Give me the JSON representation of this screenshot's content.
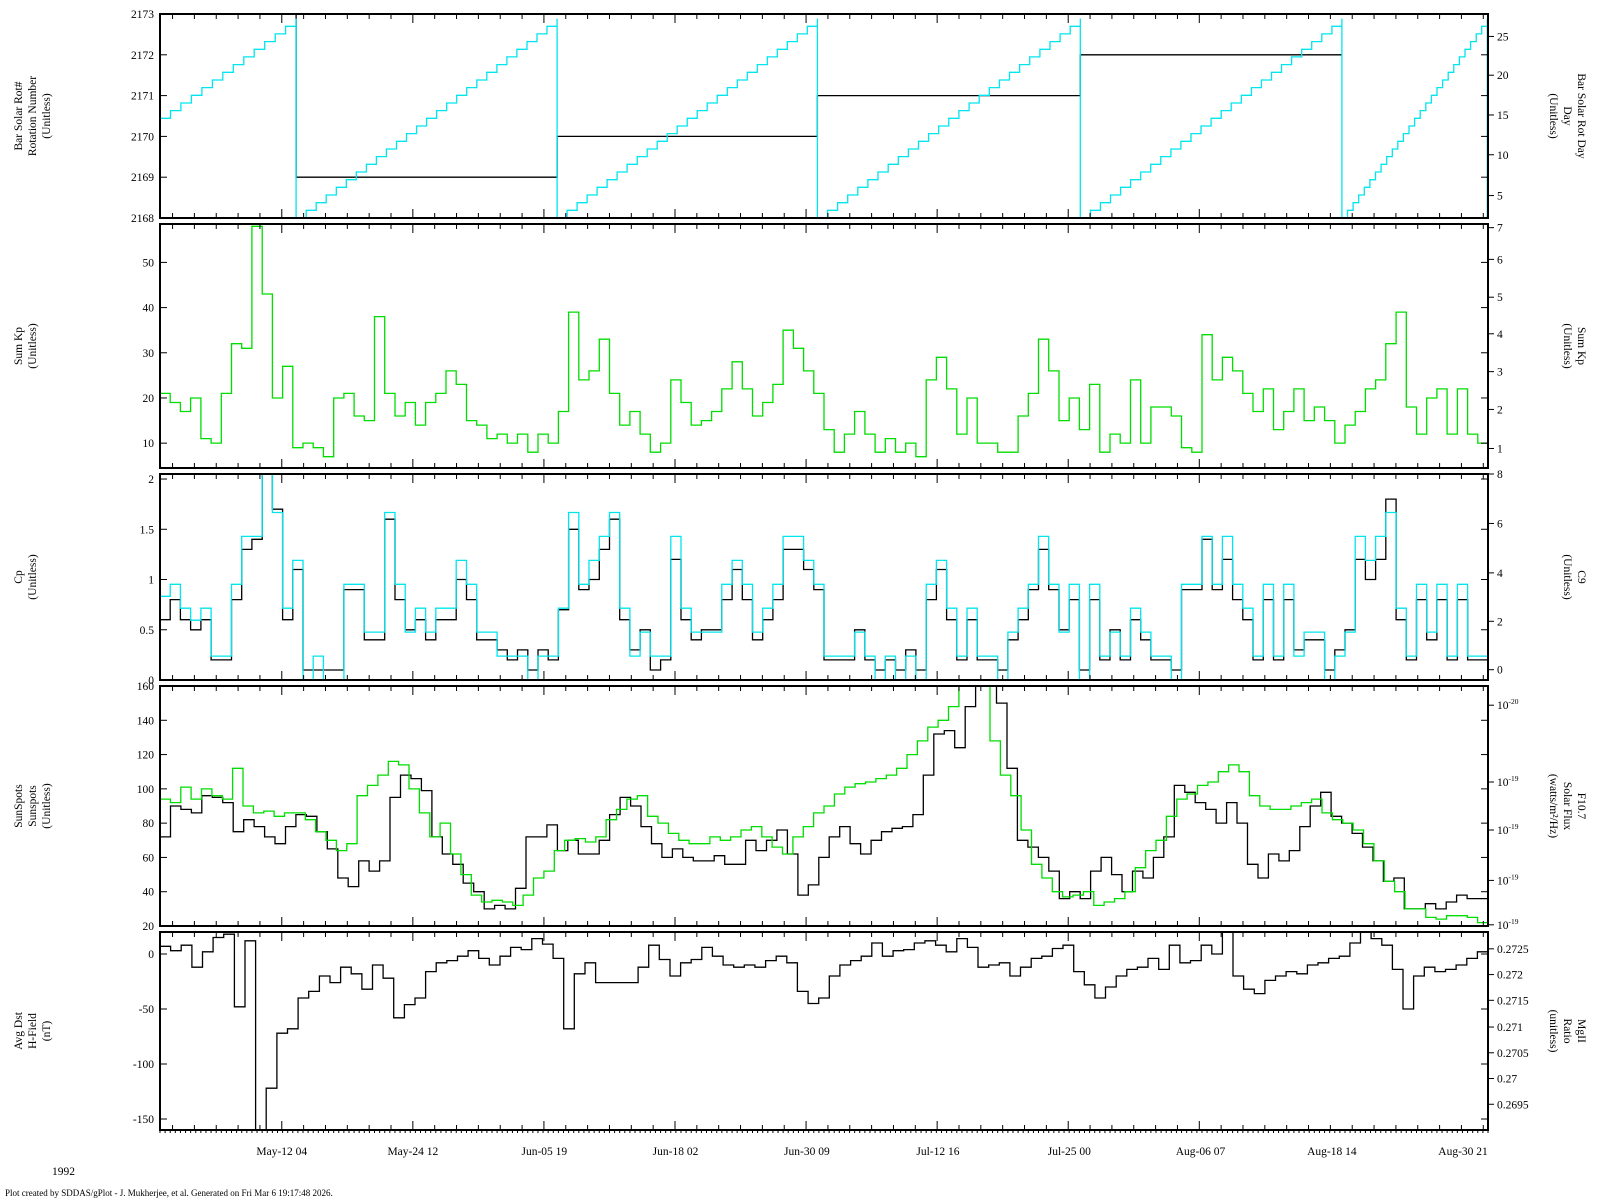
{
  "footer": "Plot created by SDDAS/gPlot - J. Mukherjee, et al.  Generated on Fri Mar 6 19:17:48 2026.",
  "year_label": "1992",
  "x_tick_labels": [
    "May-12 04",
    "May-24 12",
    "Jun-05 19",
    "Jun-18 02",
    "Jun-30 09",
    "Jul-12 16",
    "Jul-25 00",
    "Aug-06 07",
    "Aug-18 14",
    "Aug-30 21"
  ],
  "colors": {
    "black": "#000000",
    "cyan": "#00e5ee",
    "green": "#00dd00"
  },
  "chart_data": [
    {
      "type": "line",
      "left_label": [
        "Bar Solar Rot#",
        "Rotation Number",
        "(Unitless)"
      ],
      "right_label": [
        "Bar Solar Rot Day",
        "Day",
        "(Unitless)"
      ],
      "left_ticks": [
        "2168",
        "2169",
        "2170",
        "2171",
        "2172",
        "2173"
      ],
      "right_ticks": [
        "5",
        "10",
        "15",
        "20",
        "25"
      ],
      "ylim_left": [
        2168,
        2173
      ],
      "ylim_right": [
        1,
        27.6
      ],
      "series": [
        {
          "color": "black",
          "axis": "left",
          "x": [
            0.0,
            0.1025,
            0.1025,
            0.299,
            0.299,
            0.495,
            0.495,
            0.693,
            0.693,
            0.89
          ],
          "y": [
            2173,
            2173,
            2169,
            2169,
            2170,
            2170,
            2171,
            2171,
            2172,
            2172
          ]
        },
        {
          "color": "cyan",
          "axis": "right",
          "sawtooth": [
            {
              "x0": 0.0,
              "y0": 14,
              "x1": 0.1025,
              "y1": 27
            },
            {
              "x0": 0.1025,
              "y0": 1,
              "x1": 0.299,
              "y1": 27
            },
            {
              "x0": 0.299,
              "y0": 1,
              "x1": 0.495,
              "y1": 27
            },
            {
              "x0": 0.495,
              "y0": 1,
              "x1": 0.693,
              "y1": 27
            },
            {
              "x0": 0.693,
              "y0": 1,
              "x1": 0.89,
              "y1": 27
            },
            {
              "x0": 0.89,
              "y0": 1,
              "x1": 0.9995,
              "y1": 27
            }
          ]
        }
      ]
    },
    {
      "type": "line",
      "left_label": [
        "Sum Kp",
        "(Unitless)"
      ],
      "right_label": [
        "Sum Kp",
        "(Unitless)"
      ],
      "left_ticks": [
        "10",
        "20",
        "30",
        "40",
        "50"
      ],
      "right_ticks": [
        "1",
        "2",
        "3",
        "4",
        "5",
        "6",
        "7"
      ],
      "ylim_left": [
        4.5,
        58.5
      ],
      "ylim_right": [
        0.56,
        7.31
      ],
      "series": [
        {
          "color": "green",
          "axis": "left",
          "step": true,
          "values": [
            21,
            19,
            17,
            20,
            11,
            10,
            21,
            32,
            31,
            58,
            43,
            20,
            27,
            9,
            10,
            9,
            7,
            20,
            21,
            16,
            15,
            38,
            21,
            16,
            19,
            14,
            19,
            21,
            26,
            23,
            15,
            14,
            11,
            12,
            10,
            12,
            8,
            12,
            10,
            17,
            39,
            24,
            26,
            33,
            21,
            14,
            17,
            12,
            8,
            10,
            24,
            19,
            14,
            15,
            17,
            22,
            28,
            22,
            16,
            19,
            23,
            35,
            31,
            26,
            21,
            13,
            8,
            12,
            17,
            12,
            8,
            11,
            8,
            10,
            7,
            24,
            29,
            22,
            12,
            20,
            10,
            10,
            8,
            8,
            16,
            21,
            33,
            26,
            15,
            20,
            13,
            23,
            8,
            12,
            10,
            24,
            10,
            18,
            18,
            16,
            9,
            8,
            34,
            24,
            29,
            26,
            21,
            17,
            22,
            13,
            17,
            22,
            15,
            18,
            15,
            10,
            14,
            17,
            22,
            24,
            32,
            39,
            18,
            12,
            20,
            22,
            12,
            22,
            12,
            10
          ]
        }
      ]
    },
    {
      "type": "line",
      "left_label": [
        "Cp",
        "(Unitless)"
      ],
      "right_label": [
        "C9",
        "(Unitless)"
      ],
      "left_ticks": [
        "0",
        "0.5",
        "1",
        "1.5",
        "2"
      ],
      "right_ticks": [
        "0",
        "2",
        "4",
        "6",
        "8"
      ],
      "ylim_left": [
        0,
        2.05
      ],
      "ylim_right": [
        0,
        8.61
      ],
      "series": [
        {
          "color": "black",
          "axis": "left",
          "step": true,
          "values": [
            0.6,
            0.8,
            0.6,
            0.5,
            0.6,
            0.2,
            0.2,
            0.8,
            1.3,
            1.4,
            2.1,
            1.7,
            0.6,
            1.1,
            0.1,
            0.1,
            0.1,
            0.1,
            0.9,
            0.9,
            0.4,
            0.4,
            1.6,
            0.8,
            0.5,
            0.6,
            0.4,
            0.6,
            0.6,
            1.0,
            0.8,
            0.4,
            0.4,
            0.3,
            0.2,
            0.3,
            0.1,
            0.3,
            0.2,
            0.7,
            1.5,
            0.9,
            1.0,
            1.3,
            1.6,
            0.6,
            0.3,
            0.5,
            0.1,
            0.2,
            1.2,
            0.6,
            0.4,
            0.5,
            0.5,
            0.8,
            1.1,
            0.8,
            0.4,
            0.6,
            0.8,
            1.3,
            1.3,
            1.1,
            0.9,
            0.2,
            0.2,
            0.2,
            0.5,
            0.2,
            0.1,
            0.2,
            0.1,
            0.3,
            0.1,
            0.8,
            1.1,
            0.6,
            0.2,
            0.6,
            0.2,
            0.2,
            0.1,
            0.4,
            0.6,
            0.9,
            1.3,
            0.9,
            0.5,
            0.8,
            0.1,
            0.8,
            0.2,
            0.5,
            0.2,
            0.6,
            0.4,
            0.2,
            0.2,
            0.1,
            0.9,
            0.9,
            1.4,
            0.9,
            1.2,
            0.8,
            0.6,
            0.2,
            0.8,
            0.2,
            0.8,
            0.3,
            0.4,
            0.4,
            0.1,
            0.3,
            0.5,
            1.2,
            1.0,
            1.2,
            1.8,
            0.6,
            0.2,
            0.8,
            0.4,
            0.8,
            0.2,
            0.8,
            0.2,
            0.2
          ]
        },
        {
          "color": "cyan",
          "axis": "right",
          "step": true,
          "values": [
            3.5,
            4,
            3,
            2.5,
            3,
            1,
            1,
            4,
            6,
            6,
            9,
            7,
            3,
            5,
            0,
            1,
            0,
            0,
            4,
            4,
            2,
            2,
            7,
            4,
            2,
            3,
            2,
            3,
            3,
            5,
            4,
            2,
            2,
            1,
            1,
            1,
            0,
            1,
            1,
            3,
            7,
            4,
            5,
            6,
            7,
            3,
            1,
            2,
            1,
            1,
            6,
            3,
            2,
            2,
            2,
            4,
            5,
            4,
            2,
            3,
            4,
            6,
            6,
            5,
            4,
            1,
            1,
            1,
            2,
            1,
            0,
            1,
            0,
            1,
            0,
            4,
            5,
            3,
            1,
            3,
            1,
            1,
            0,
            2,
            3,
            4,
            6,
            4,
            2,
            4,
            0,
            4,
            1,
            2,
            1,
            3,
            2,
            1,
            1,
            0,
            4,
            4,
            6,
            4,
            6,
            4,
            3,
            1,
            4,
            1,
            4,
            1,
            2,
            2,
            0,
            1,
            2,
            6,
            5,
            6,
            7,
            3,
            1,
            4,
            2,
            4,
            1,
            4,
            1,
            1
          ]
        }
      ]
    },
    {
      "type": "line",
      "left_label": [
        "SunSpots",
        "Sunspots",
        "(Unitless)"
      ],
      "right_label": [
        "F10.7",
        "Solar Flux",
        "(watts/m²/Hz)"
      ],
      "left_ticks": [
        "20",
        "40",
        "60",
        "80",
        "100",
        "120",
        "140",
        "160"
      ],
      "right_ticks": [
        "10",
        "10",
        "10",
        "10",
        "10"
      ],
      "right_tick_exponents": [
        "-19",
        "-19",
        "-19",
        "-19",
        "-20"
      ],
      "ylim_left": [
        20,
        160
      ],
      "series": [
        {
          "color": "black",
          "axis": "left",
          "step": true,
          "values": [
            72,
            90,
            88,
            86,
            96,
            95,
            92,
            75,
            82,
            78,
            72,
            68,
            78,
            85,
            84,
            75,
            65,
            48,
            43,
            58,
            52,
            58,
            95,
            108,
            106,
            99,
            72,
            62,
            56,
            45,
            40,
            30,
            32,
            30,
            42,
            72,
            72,
            79,
            64,
            70,
            62,
            62,
            70,
            85,
            95,
            90,
            78,
            68,
            60,
            65,
            60,
            58,
            58,
            61,
            56,
            56,
            70,
            64,
            70,
            76,
            62,
            38,
            44,
            60,
            72,
            78,
            68,
            62,
            70,
            75,
            77,
            78,
            85,
            108,
            132,
            134,
            124,
            148,
            170,
            176,
            150,
            112,
            70,
            66,
            60,
            52,
            36,
            40,
            36,
            52,
            60,
            50,
            40,
            52,
            48,
            60,
            72,
            102,
            98,
            92,
            88,
            80,
            92,
            80,
            56,
            48,
            62,
            58,
            64,
            78,
            90,
            98,
            84,
            80,
            74,
            66,
            58,
            46,
            48,
            30,
            30,
            33,
            30,
            34,
            38,
            36,
            36
          ]
        },
        {
          "color": "green",
          "axis": "left",
          "step": true,
          "values": [
            94,
            92,
            101,
            94,
            100,
            96,
            94,
            112,
            90,
            86,
            87,
            84,
            86,
            86,
            82,
            75,
            70,
            64,
            68,
            96,
            102,
            108,
            116,
            114,
            100,
            86,
            72,
            80,
            62,
            50,
            38,
            34,
            35,
            34,
            32,
            38,
            48,
            52,
            64,
            70,
            71,
            69,
            72,
            82,
            88,
            94,
            96,
            84,
            80,
            74,
            70,
            68,
            68,
            72,
            70,
            72,
            76,
            78,
            72,
            66,
            62,
            72,
            78,
            86,
            90,
            97,
            101,
            103,
            104,
            106,
            108,
            112,
            120,
            128,
            136,
            140,
            148,
            160,
            172,
            164,
            128,
            108,
            96,
            76,
            56,
            48,
            40,
            37,
            38,
            40,
            32,
            34,
            36,
            40,
            54,
            64,
            70,
            84,
            94,
            97,
            102,
            104,
            110,
            114,
            110,
            96,
            90,
            88,
            88,
            90,
            92,
            94,
            86,
            82,
            80,
            76,
            68,
            58,
            46,
            40,
            30,
            30,
            25,
            24,
            26,
            26,
            25,
            22
          ]
        }
      ]
    },
    {
      "type": "line",
      "left_label": [
        "Avg Dst",
        "H-Field",
        "(nT)"
      ],
      "right_label": [
        "MgII",
        "Ratio",
        "(unitless)"
      ],
      "left_ticks": [
        "0",
        "-50",
        "-100",
        "-150"
      ],
      "right_ticks": [
        "0.2695",
        "0.27",
        "0.2705",
        "0.271",
        "0.2715",
        "0.272",
        "0.2725"
      ],
      "ylim_left": [
        -160,
        20
      ],
      "series": [
        {
          "color": "black",
          "axis": "left",
          "step": true,
          "values": [
            7,
            3,
            8,
            -12,
            2,
            15,
            18,
            -48,
            12,
            -170,
            -122,
            -72,
            -68,
            -40,
            -34,
            -20,
            -26,
            -12,
            -18,
            -32,
            -10,
            -22,
            -58,
            -46,
            -40,
            -16,
            -8,
            -6,
            -2,
            3,
            -4,
            -10,
            -2,
            6,
            4,
            14,
            9,
            -4,
            -68,
            -18,
            -8,
            -26,
            -26,
            -26,
            -26,
            -12,
            8,
            -5,
            -20,
            -8,
            -5,
            6,
            -2,
            -10,
            -12,
            -10,
            -12,
            -6,
            -2,
            -8,
            -34,
            -45,
            -40,
            -20,
            -10,
            -6,
            -2,
            10,
            -2,
            3,
            4,
            10,
            12,
            8,
            2,
            14,
            6,
            -12,
            -10,
            -8,
            -20,
            -12,
            -4,
            -2,
            5,
            8,
            -16,
            -28,
            -40,
            -30,
            -20,
            -14,
            -12,
            -4,
            -14,
            8,
            -8,
            -6,
            8,
            0,
            45,
            -20,
            -32,
            -36,
            -24,
            -20,
            -16,
            -18,
            -10,
            -8,
            -4,
            -2,
            10,
            20,
            14,
            8,
            -14,
            -50,
            -20,
            -12,
            -16,
            -14,
            -10,
            -4,
            2
          ]
        }
      ]
    }
  ]
}
